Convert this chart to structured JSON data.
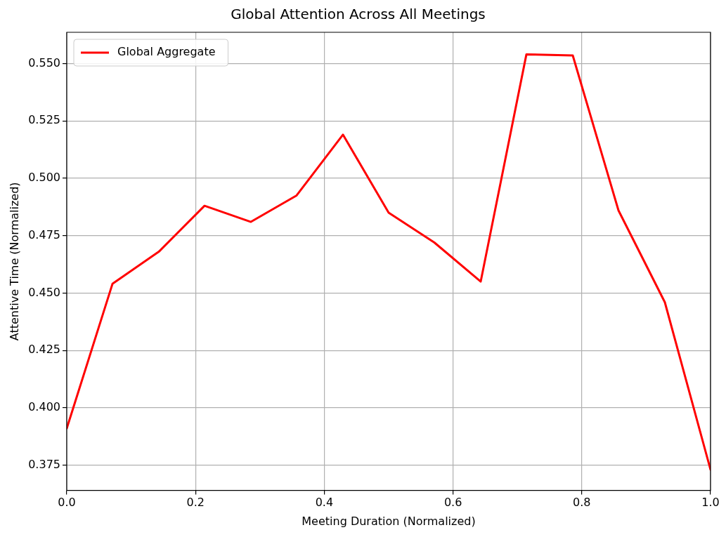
{
  "chart_data": {
    "type": "line",
    "title": "Global Attention Across All Meetings",
    "xlabel": "Meeting Duration (Normalized)",
    "ylabel": "Attentive Time (Normalized)",
    "x": [
      0,
      0.071,
      0.143,
      0.214,
      0.286,
      0.357,
      0.429,
      0.5,
      0.571,
      0.643,
      0.714,
      0.786,
      0.857,
      0.929,
      1
    ],
    "series": [
      {
        "name": "Global Aggregate",
        "color": "#ff0000",
        "values": [
          0.391,
          0.454,
          0.468,
          0.488,
          0.481,
          0.4925,
          0.519,
          0.485,
          0.472,
          0.455,
          0.554,
          0.5535,
          0.486,
          0.446,
          0.373
        ]
      }
    ],
    "xlim": [
      0,
      1
    ],
    "xticks": [
      {
        "value": 0,
        "label": "0.0"
      },
      {
        "value": 0.2,
        "label": "0.2"
      },
      {
        "value": 0.4,
        "label": "0.4"
      },
      {
        "value": 0.6,
        "label": "0.6"
      },
      {
        "value": 0.8,
        "label": "0.8"
      },
      {
        "value": 1,
        "label": "1.0"
      }
    ],
    "ylim": [
      0.364,
      0.5636
    ],
    "yticks": [
      {
        "value": 0.375,
        "label": "0.375"
      },
      {
        "value": 0.4,
        "label": "0.400"
      },
      {
        "value": 0.425,
        "label": "0.425"
      },
      {
        "value": 0.45,
        "label": "0.450"
      },
      {
        "value": 0.475,
        "label": "0.475"
      },
      {
        "value": 0.5,
        "label": "0.500"
      },
      {
        "value": 0.525,
        "label": "0.525"
      },
      {
        "value": 0.55,
        "label": "0.550"
      }
    ],
    "grid": true,
    "legend": "top left",
    "marker": "none",
    "line_style": "solid"
  }
}
